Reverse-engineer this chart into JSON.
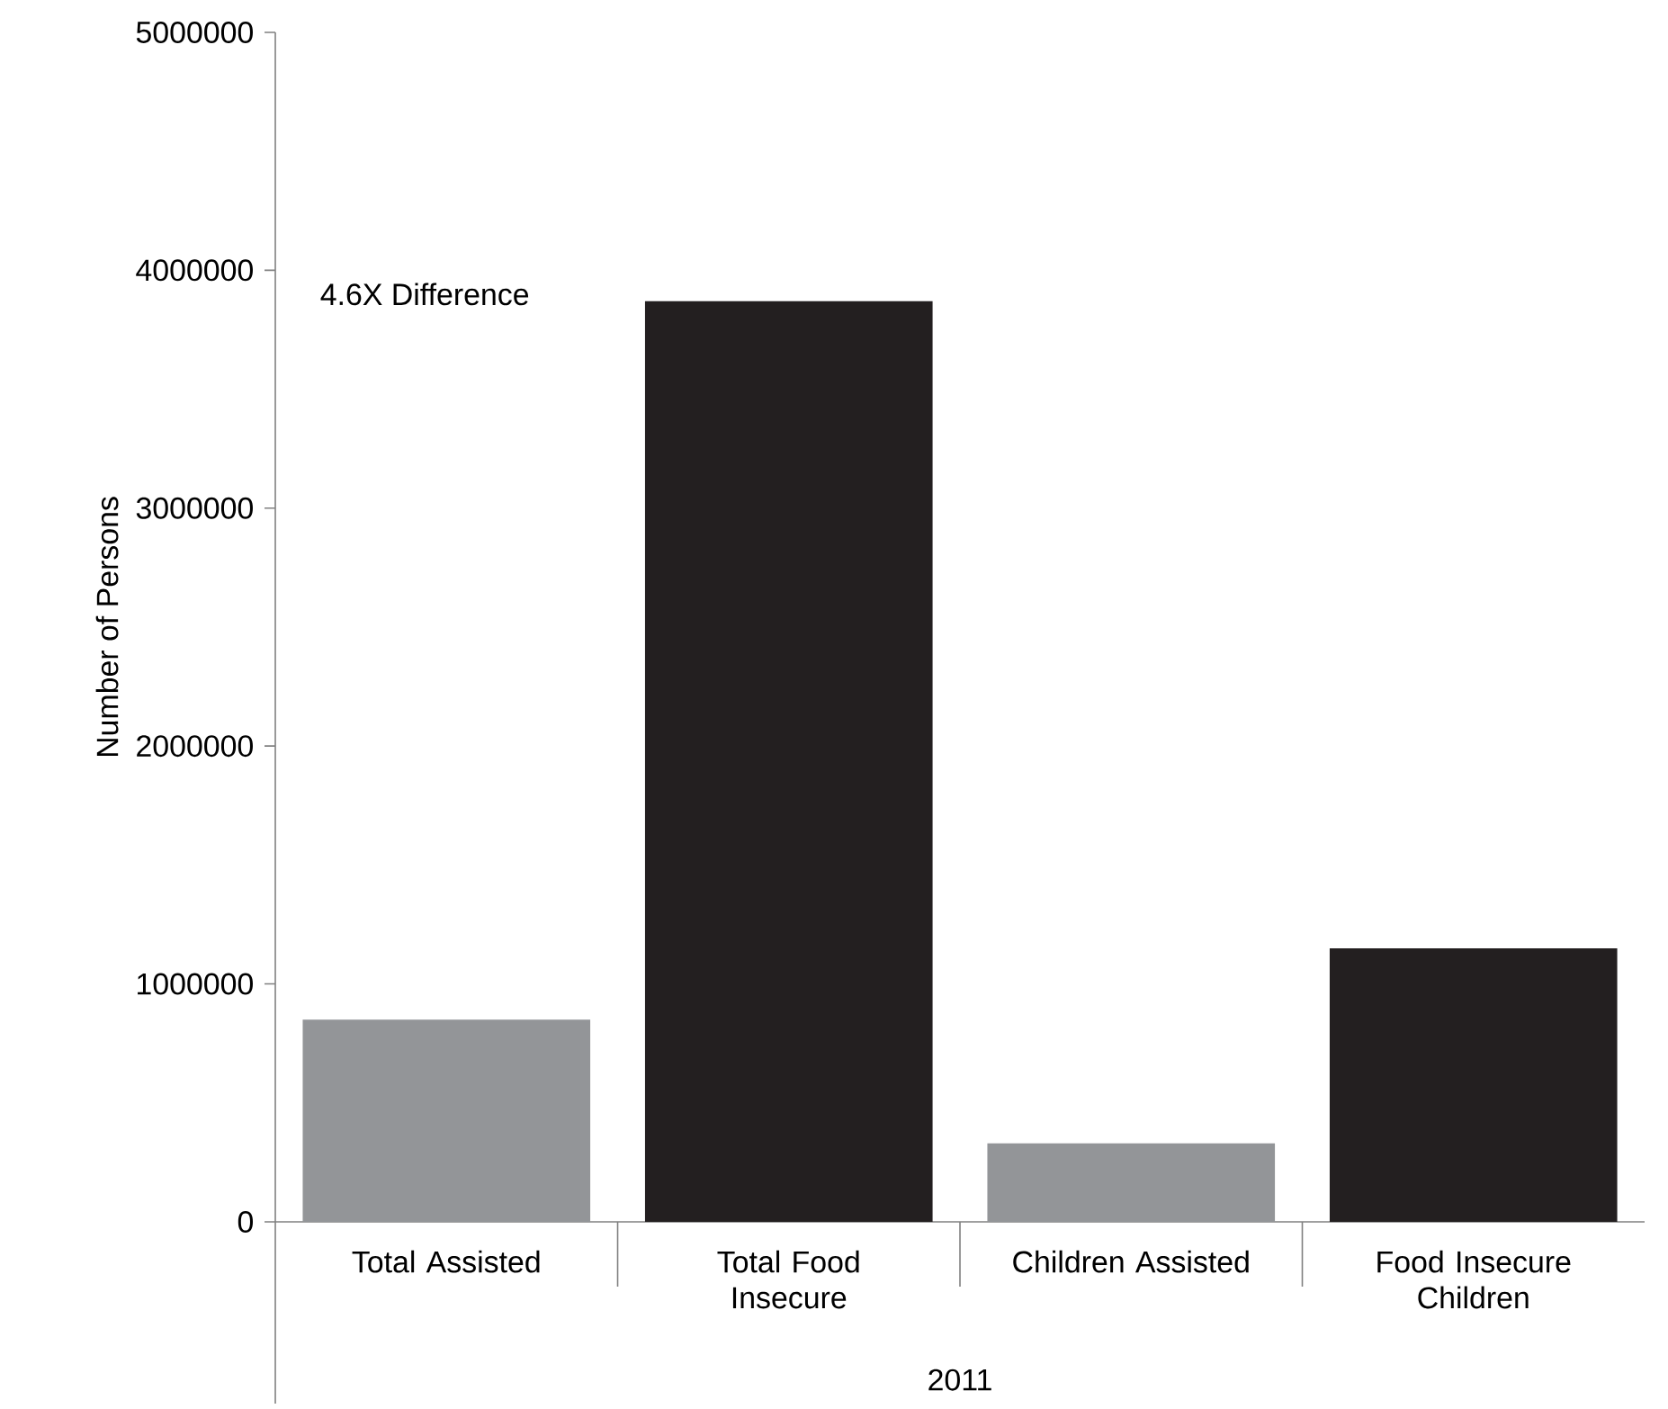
{
  "chart_data": {
    "type": "bar",
    "categories": [
      "Total Assisted",
      "Total Food Insecure",
      "Children Assisted",
      "Food Insecure Children"
    ],
    "values": [
      850000,
      3870000,
      330000,
      1150000
    ],
    "colors": [
      "#939598",
      "#231f20",
      "#939598",
      "#231f20"
    ],
    "xlabel": "2011",
    "ylabel": "Number of Persons",
    "ylim": [
      0,
      5000000
    ],
    "yticks": [
      0,
      1000000,
      2000000,
      3000000,
      4000000,
      5000000
    ],
    "annotations": [
      "4.6X Difference"
    ],
    "grid": false
  }
}
